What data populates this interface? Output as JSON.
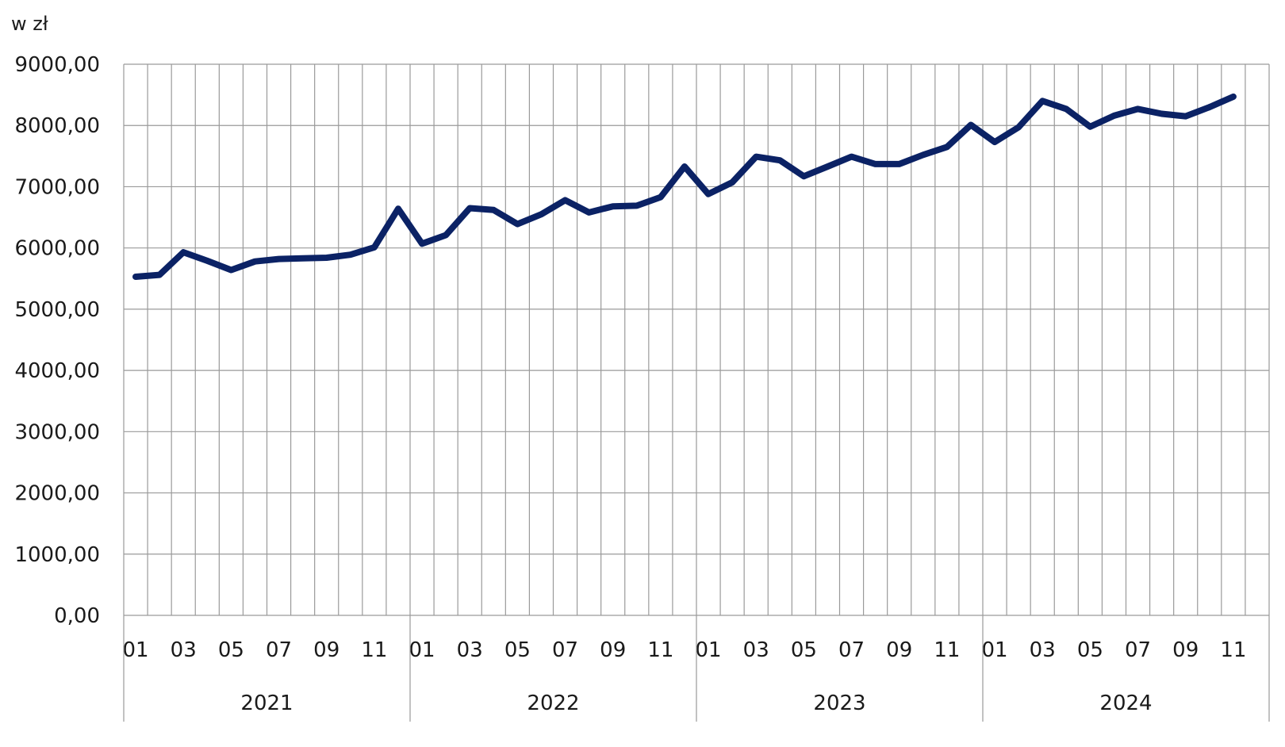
{
  "chart_data": {
    "type": "line",
    "unit_label": "w zł",
    "ylim": [
      0,
      9000
    ],
    "y_ticks": [
      "0,00",
      "1000,00",
      "2000,00",
      "3000,00",
      "4000,00",
      "5000,00",
      "6000,00",
      "7000,00",
      "8000,00",
      "9000,00"
    ],
    "y_tick_values": [
      0,
      1000,
      2000,
      3000,
      4000,
      5000,
      6000,
      7000,
      8000,
      9000
    ],
    "grid": true,
    "line_color": "#0b2265",
    "month_labels": [
      "01",
      "03",
      "05",
      "07",
      "09",
      "11"
    ],
    "years": [
      "2021",
      "2022",
      "2023",
      "2024"
    ],
    "x": [
      "2021-01",
      "2021-02",
      "2021-03",
      "2021-04",
      "2021-05",
      "2021-06",
      "2021-07",
      "2021-08",
      "2021-09",
      "2021-10",
      "2021-11",
      "2021-12",
      "2022-01",
      "2022-02",
      "2022-03",
      "2022-04",
      "2022-05",
      "2022-06",
      "2022-07",
      "2022-08",
      "2022-09",
      "2022-10",
      "2022-11",
      "2022-12",
      "2023-01",
      "2023-02",
      "2023-03",
      "2023-04",
      "2023-05",
      "2023-06",
      "2023-07",
      "2023-08",
      "2023-09",
      "2023-10",
      "2023-11",
      "2023-12",
      "2024-01",
      "2024-02",
      "2024-03",
      "2024-04",
      "2024-05",
      "2024-06",
      "2024-07",
      "2024-08",
      "2024-09",
      "2024-10",
      "2024-11"
    ],
    "series": [
      {
        "values": [
          5530,
          5560,
          5930,
          5790,
          5640,
          5780,
          5820,
          5830,
          5840,
          5890,
          6010,
          6640,
          6070,
          6210,
          6650,
          6620,
          6390,
          6550,
          6780,
          6580,
          6680,
          6690,
          6830,
          7330,
          6880,
          7070,
          7490,
          7430,
          7170,
          7330,
          7490,
          7370,
          7370,
          7520,
          7650,
          8010,
          7730,
          7970,
          8400,
          8270,
          7980,
          8160,
          8270,
          8190,
          8150,
          8300,
          8470
        ]
      }
    ]
  }
}
